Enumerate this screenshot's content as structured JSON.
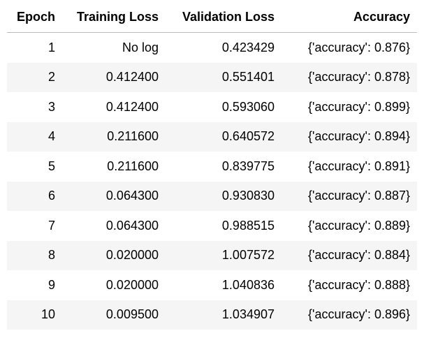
{
  "table": {
    "columns": [
      "Epoch",
      "Training Loss",
      "Validation Loss",
      "Accuracy"
    ],
    "rows": [
      [
        "1",
        "No log",
        "0.423429",
        "{'accuracy': 0.876}"
      ],
      [
        "2",
        "0.412400",
        "0.551401",
        "{'accuracy': 0.878}"
      ],
      [
        "3",
        "0.412400",
        "0.593060",
        "{'accuracy': 0.899}"
      ],
      [
        "4",
        "0.211600",
        "0.640572",
        "{'accuracy': 0.894}"
      ],
      [
        "5",
        "0.211600",
        "0.839775",
        "{'accuracy': 0.891}"
      ],
      [
        "6",
        "0.064300",
        "0.930830",
        "{'accuracy': 0.887}"
      ],
      [
        "7",
        "0.064300",
        "0.988515",
        "{'accuracy': 0.889}"
      ],
      [
        "8",
        "0.020000",
        "1.007572",
        "{'accuracy': 0.884}"
      ],
      [
        "9",
        "0.020000",
        "1.040836",
        "{'accuracy': 0.888}"
      ],
      [
        "10",
        "0.009500",
        "1.034907",
        "{'accuracy': 0.896}"
      ]
    ]
  }
}
